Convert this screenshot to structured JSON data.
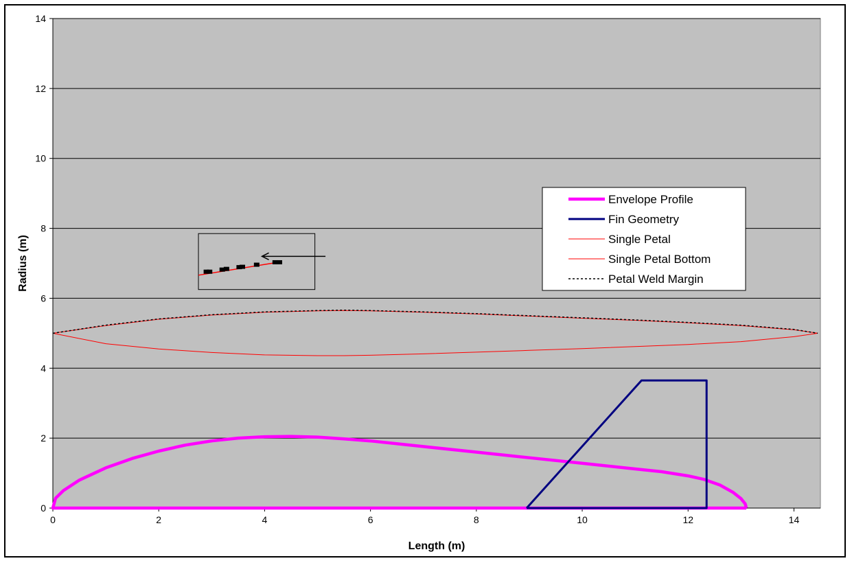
{
  "chart_data": {
    "type": "line",
    "title": "",
    "xlabel": "Length (m)",
    "ylabel": "Radius (m)",
    "xlim": [
      0,
      14.5
    ],
    "ylim": [
      0,
      14
    ],
    "xticks": [
      0,
      2,
      4,
      6,
      8,
      10,
      12,
      14
    ],
    "yticks": [
      0,
      2,
      4,
      6,
      8,
      10,
      12,
      14
    ],
    "grid": "horizontal",
    "legend_placement": "right",
    "plot_background": "#c0c0c0",
    "series": [
      {
        "name": "Envelope Profile",
        "color": "#ff00ff",
        "style": "solid-thick",
        "x": [
          13.1,
          0,
          0.05,
          0.2,
          0.5,
          1.0,
          1.5,
          2.0,
          2.5,
          3.0,
          3.5,
          4.0,
          4.5,
          5.0,
          5.5,
          6.0,
          7.0,
          8.0,
          9.0,
          10.0,
          11.0,
          11.5,
          12.0,
          12.3,
          12.6,
          12.85,
          13.0,
          13.08,
          13.1
        ],
        "y": [
          0,
          0,
          0.28,
          0.5,
          0.8,
          1.15,
          1.42,
          1.63,
          1.8,
          1.92,
          2.0,
          2.04,
          2.05,
          2.03,
          1.98,
          1.92,
          1.76,
          1.6,
          1.44,
          1.28,
          1.12,
          1.04,
          0.92,
          0.82,
          0.66,
          0.45,
          0.27,
          0.12,
          0
        ]
      },
      {
        "name": "Fin Geometry",
        "color": "#000080",
        "style": "solid",
        "x": [
          8.95,
          11.12,
          12.35,
          12.35,
          8.95
        ],
        "y": [
          0,
          3.65,
          3.65,
          0,
          0
        ]
      },
      {
        "name": "Single Petal",
        "color": "#ff0000",
        "style": "solid-thin",
        "x": [
          0,
          1,
          2,
          3,
          4,
          5,
          5.5,
          6,
          7,
          8,
          9,
          10,
          11,
          12,
          13,
          14,
          14.45
        ],
        "y": [
          5.0,
          5.22,
          5.4,
          5.52,
          5.6,
          5.64,
          5.65,
          5.64,
          5.6,
          5.55,
          5.49,
          5.43,
          5.37,
          5.3,
          5.22,
          5.1,
          5.0
        ]
      },
      {
        "name": "Single Petal Bottom",
        "color": "#ff0000",
        "style": "solid-thin",
        "x": [
          0,
          1,
          2,
          3,
          4,
          5,
          5.5,
          6,
          7,
          8,
          9,
          10,
          11,
          12,
          13,
          14,
          14.45
        ],
        "y": [
          5.0,
          4.7,
          4.55,
          4.45,
          4.38,
          4.36,
          4.36,
          4.37,
          4.41,
          4.46,
          4.51,
          4.56,
          4.62,
          4.68,
          4.76,
          4.9,
          5.0
        ]
      },
      {
        "name": "Petal Weld Margin",
        "color": "#000000",
        "style": "dotted",
        "x": [
          0,
          1,
          2,
          3,
          4,
          5,
          5.5,
          6,
          7,
          8,
          9,
          10,
          11,
          12,
          13,
          14,
          14.45
        ],
        "y": [
          5.0,
          5.23,
          5.41,
          5.53,
          5.61,
          5.65,
          5.66,
          5.65,
          5.61,
          5.56,
          5.5,
          5.44,
          5.38,
          5.31,
          5.23,
          5.11,
          5.0
        ]
      }
    ],
    "inset": {
      "box_x": [
        2.75,
        4.95
      ],
      "box_y": [
        6.25,
        7.85
      ],
      "red_line": {
        "x": [
          2.75,
          4.3
        ],
        "y": [
          6.66,
          7.04
        ]
      },
      "dots": {
        "x": [
          2.9,
          2.96,
          3.2,
          3.28,
          3.52,
          3.58,
          3.85,
          4.2,
          4.28
        ],
        "y": [
          6.76,
          6.76,
          6.82,
          6.84,
          6.89,
          6.9,
          6.96,
          7.03,
          7.03
        ]
      },
      "arrow": {
        "x": [
          5.15,
          3.95
        ],
        "y": [
          7.2,
          7.2
        ]
      }
    }
  }
}
